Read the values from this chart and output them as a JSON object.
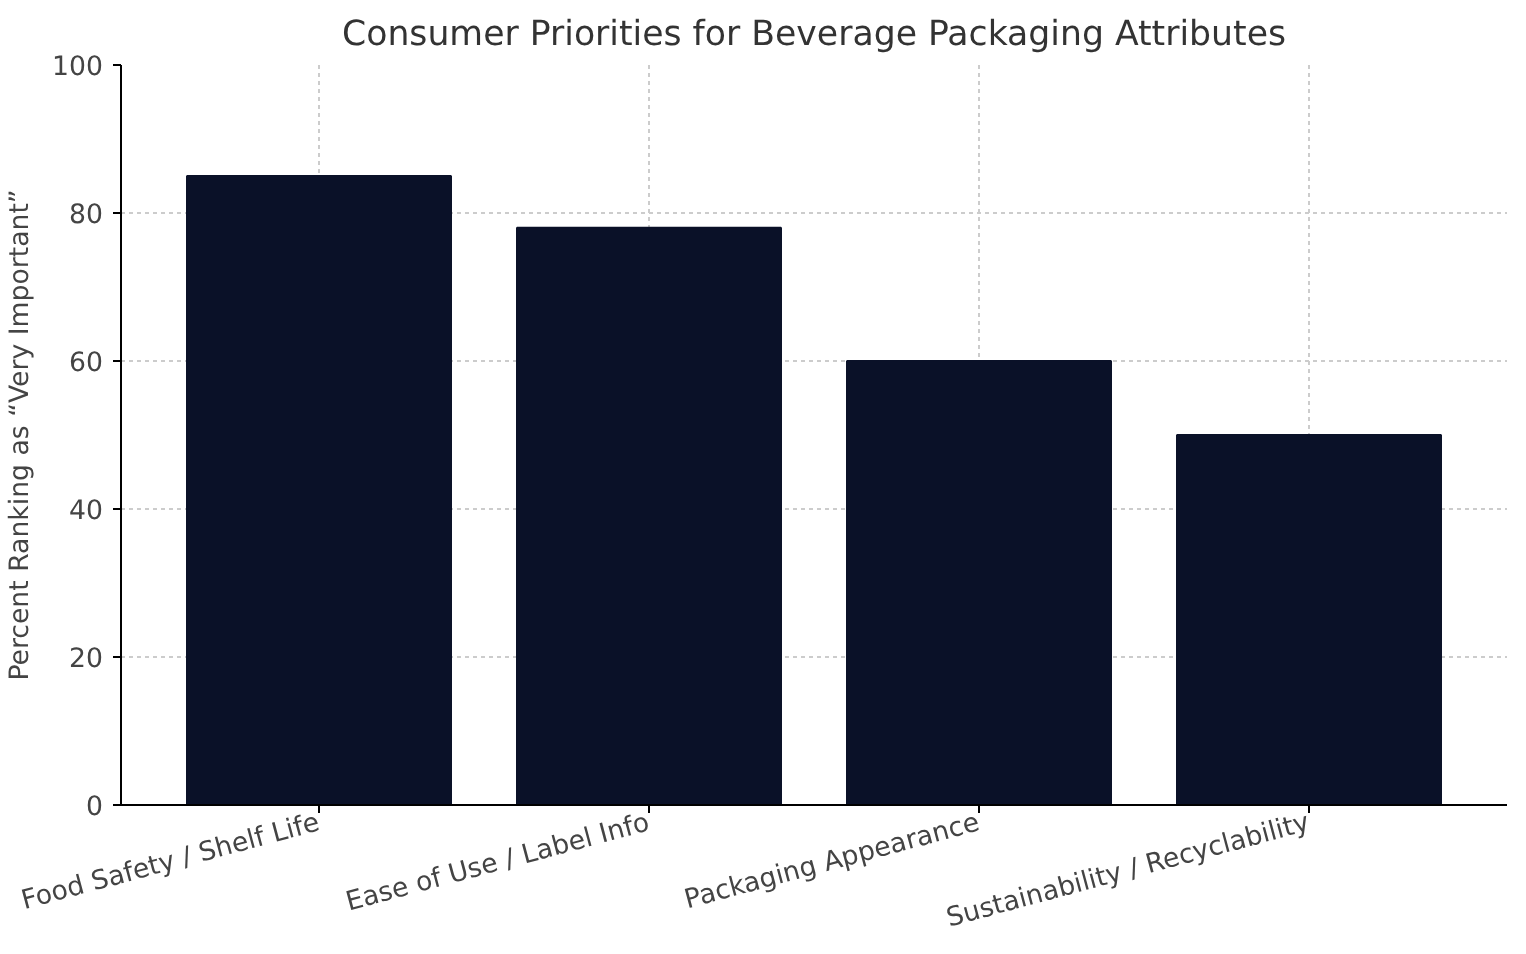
{
  "chart_data": {
    "type": "bar",
    "title": "Consumer Priorities for Beverage Packaging Attributes",
    "ylabel": "Percent Ranking as “Very Important”",
    "categories": [
      "Food Safety / Shelf Life",
      "Ease of Use / Label Info",
      "Packaging Appearance",
      "Sustainability / Recyclability"
    ],
    "values": [
      85,
      78,
      60,
      50
    ],
    "color": "#0a1128",
    "ylim": [
      0,
      100
    ],
    "yticks": [
      0,
      20,
      40,
      60,
      80,
      100
    ],
    "grid": true
  }
}
